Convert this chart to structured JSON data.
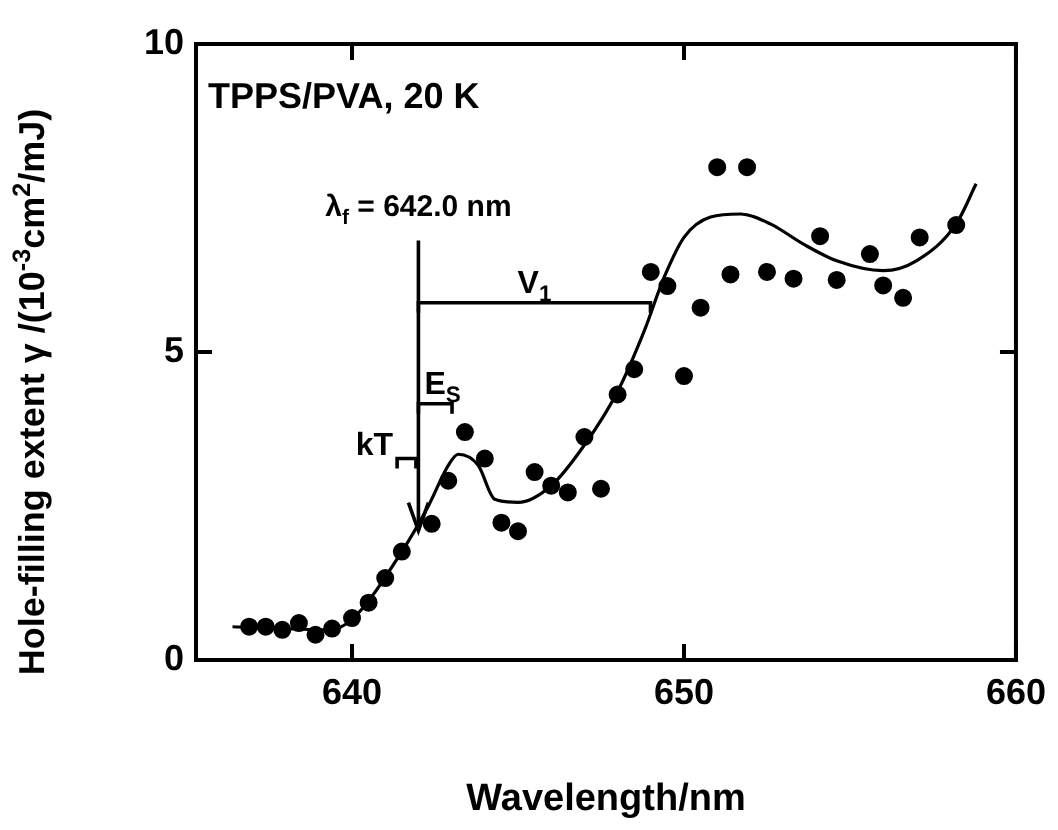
{
  "chart_data": {
    "type": "scatter",
    "title": "TPPS/PVA, 20 K",
    "xlabel": "Wavelength/nm",
    "ylabel": "Hole-filling extent γ /(10$^{-3}$cm$^{2}$/mJ)",
    "xlim": [
      635.3,
      660
    ],
    "xticks": [
      640,
      650,
      660
    ],
    "ylim": [
      0,
      10
    ],
    "yticks": [
      0,
      5,
      10
    ],
    "grid": false,
    "legend": false,
    "marker": "circle",
    "series": [
      {
        "type": "scatter",
        "color": "#000000",
        "x": [
          636.9,
          637.4,
          637.9,
          638.4,
          638.9,
          639.4,
          640.0,
          640.5,
          641.0,
          641.5,
          642.4,
          642.9,
          643.4,
          644.0,
          644.5,
          645.0,
          645.5,
          646.0,
          646.5,
          647.0,
          647.5,
          648.0,
          648.5,
          649.0,
          649.5,
          650.0,
          650.5,
          651.0,
          651.4,
          651.9,
          652.5,
          653.3,
          654.1,
          654.6,
          655.6,
          656.0,
          656.6,
          657.1,
          658.2
        ],
        "values": [
          0.54,
          0.54,
          0.49,
          0.6,
          0.41,
          0.51,
          0.68,
          0.93,
          1.33,
          1.76,
          2.21,
          2.91,
          3.7,
          3.27,
          2.23,
          2.09,
          3.05,
          2.83,
          2.72,
          3.62,
          2.78,
          4.31,
          4.72,
          6.3,
          6.07,
          4.61,
          5.72,
          8.0,
          6.26,
          8.0,
          6.3,
          6.19,
          6.88,
          6.17,
          6.59,
          6.08,
          5.88,
          6.86,
          7.06
        ]
      },
      {
        "type": "line",
        "color": "#000000",
        "marker": "none",
        "x": [
          636.4,
          639.3,
          640.0,
          641.5,
          642.3,
          642.9,
          643.2,
          643.8,
          644.3,
          645.0,
          646.0,
          647.0,
          648.0,
          648.8,
          649.4,
          650.0,
          650.8,
          651.7,
          652.6,
          653.6,
          654.6,
          656.0,
          657.0,
          658.2,
          658.8
        ],
        "values": [
          0.54,
          0.49,
          0.66,
          1.76,
          2.5,
          3.16,
          3.34,
          3.16,
          2.61,
          2.56,
          2.83,
          3.49,
          4.36,
          5.34,
          6.21,
          6.86,
          7.19,
          7.24,
          7.08,
          6.75,
          6.48,
          6.32,
          6.48,
          7.08,
          7.73
        ]
      }
    ],
    "ref_lines": [
      {
        "axis": "x",
        "value": 642.0,
        "label": "λ$_{f}$ = 642.0 nm"
      }
    ],
    "annotations": [
      "V$_{1}$",
      "E$_{S}$",
      "kT"
    ]
  }
}
